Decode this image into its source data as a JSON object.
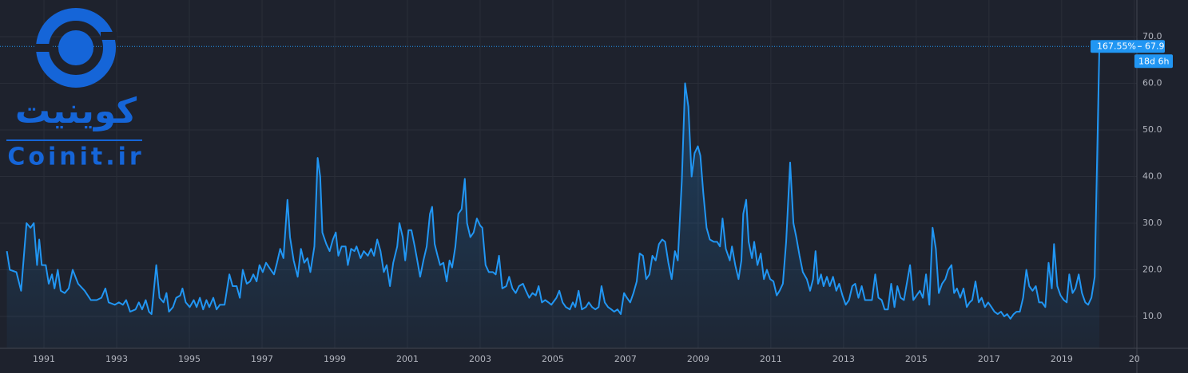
{
  "chart_data": {
    "type": "area",
    "watermark_persian": "کوینیت",
    "watermark_latin": "Coinit.ir",
    "color": "#2196f3",
    "grid": true,
    "xlim": [
      1989.79,
      2021.07
    ],
    "ylim": [
      3.16,
      77.86
    ],
    "xticks": [
      1991,
      1993,
      1995,
      1997,
      1999,
      2001,
      2003,
      2005,
      2007,
      2009,
      2011,
      2013,
      2015,
      2017,
      2019,
      {
        "value": 2021,
        "label": "20"
      }
    ],
    "yticks": [
      {
        "value": 10,
        "label": "10.0"
      },
      {
        "value": 20,
        "label": "20.0"
      },
      {
        "value": 30,
        "label": "30.0"
      },
      {
        "value": 40,
        "label": "40.0"
      },
      {
        "value": 50,
        "label": "50.0"
      },
      {
        "value": 60,
        "label": "60.0"
      },
      {
        "value": 70,
        "label": "70.0"
      }
    ],
    "change_label": "167.55%",
    "countdown_label": "18d 6h",
    "x": [
      1989.98,
      1990.06,
      1990.24,
      1990.37,
      1990.52,
      1990.63,
      1990.72,
      1990.81,
      1990.87,
      1990.94,
      1991.05,
      1991.13,
      1991.22,
      1991.29,
      1991.38,
      1991.46,
      1991.57,
      1991.68,
      1991.79,
      1991.94,
      1992.12,
      1992.29,
      1992.45,
      1992.58,
      1992.69,
      1992.78,
      1992.95,
      1993.06,
      1993.17,
      1993.26,
      1993.37,
      1993.52,
      1993.61,
      1993.7,
      1993.8,
      1993.89,
      1993.96,
      1994.09,
      1994.18,
      1994.29,
      1994.37,
      1994.44,
      1994.55,
      1994.64,
      1994.75,
      1994.81,
      1994.9,
      1995.01,
      1995.12,
      1995.2,
      1995.29,
      1995.38,
      1995.47,
      1995.55,
      1995.66,
      1995.75,
      1995.84,
      1995.97,
      1996.1,
      1996.19,
      1996.3,
      1996.39,
      1996.47,
      1996.58,
      1996.67,
      1996.76,
      1996.85,
      1996.93,
      1997.02,
      1997.11,
      1997.24,
      1997.33,
      1997.41,
      1997.5,
      1997.59,
      1997.7,
      1997.77,
      1997.87,
      1997.98,
      1998.07,
      1998.16,
      1998.25,
      1998.33,
      1998.44,
      1998.53,
      1998.6,
      1998.66,
      1998.77,
      1998.86,
      1998.95,
      1999.03,
      1999.1,
      1999.19,
      1999.3,
      1999.36,
      1999.45,
      1999.54,
      1999.6,
      1999.71,
      1999.8,
      1999.91,
      2000.0,
      2000.08,
      2000.17,
      2000.26,
      2000.35,
      2000.43,
      2000.52,
      2000.61,
      2000.72,
      2000.78,
      2000.87,
      2000.94,
      2001.03,
      2001.11,
      2001.2,
      2001.27,
      2001.35,
      2001.44,
      2001.53,
      2001.62,
      2001.68,
      2001.75,
      2001.83,
      2001.9,
      2001.99,
      2002.08,
      2002.16,
      2002.23,
      2002.32,
      2002.4,
      2002.49,
      2002.58,
      2002.64,
      2002.73,
      2002.82,
      2002.91,
      2003.0,
      2003.06,
      2003.15,
      2003.24,
      2003.35,
      2003.43,
      2003.52,
      2003.61,
      2003.72,
      2003.8,
      2003.89,
      2003.98,
      2004.07,
      2004.18,
      2004.26,
      2004.35,
      2004.44,
      2004.53,
      2004.61,
      2004.7,
      2004.79,
      2004.88,
      2004.96,
      2005.1,
      2005.18,
      2005.27,
      2005.36,
      2005.47,
      2005.55,
      2005.62,
      2005.71,
      2005.8,
      2005.91,
      2005.99,
      2006.08,
      2006.17,
      2006.26,
      2006.34,
      2006.43,
      2006.52,
      2006.61,
      2006.69,
      2006.78,
      2006.87,
      2006.96,
      2007.04,
      2007.13,
      2007.22,
      2007.31,
      2007.39,
      2007.48,
      2007.57,
      2007.66,
      2007.74,
      2007.83,
      2007.92,
      2008.01,
      2008.09,
      2008.18,
      2008.27,
      2008.36,
      2008.44,
      2008.55,
      2008.64,
      2008.73,
      2008.82,
      2008.9,
      2008.99,
      2009.06,
      2009.14,
      2009.23,
      2009.32,
      2009.43,
      2009.52,
      2009.6,
      2009.67,
      2009.76,
      2009.87,
      2009.93,
      2010.02,
      2010.11,
      2010.19,
      2010.24,
      2010.32,
      2010.39,
      2010.48,
      2010.54,
      2010.63,
      2010.72,
      2010.81,
      2010.89,
      2010.98,
      2011.07,
      2011.16,
      2011.24,
      2011.33,
      2011.42,
      2011.53,
      2011.62,
      2011.7,
      2011.79,
      2011.88,
      2011.99,
      2012.08,
      2012.16,
      2012.23,
      2012.3,
      2012.38,
      2012.45,
      2012.54,
      2012.62,
      2012.71,
      2012.8,
      2012.88,
      2012.97,
      2013.06,
      2013.15,
      2013.24,
      2013.32,
      2013.41,
      2013.5,
      2013.59,
      2013.7,
      2013.78,
      2013.87,
      2013.96,
      2014.05,
      2014.13,
      2014.22,
      2014.31,
      2014.4,
      2014.48,
      2014.57,
      2014.66,
      2014.75,
      2014.83,
      2014.92,
      2015.01,
      2015.1,
      2015.18,
      2015.27,
      2015.36,
      2015.45,
      2015.54,
      2015.62,
      2015.71,
      2015.8,
      2015.88,
      2015.97,
      2016.04,
      2016.12,
      2016.21,
      2016.3,
      2016.39,
      2016.47,
      2016.54,
      2016.63,
      2016.72,
      2016.8,
      2016.89,
      2016.98,
      2017.07,
      2017.15,
      2017.24,
      2017.33,
      2017.42,
      2017.5,
      2017.59,
      2017.68,
      2017.76,
      2017.85,
      2017.94,
      2018.03,
      2018.11,
      2018.2,
      2018.29,
      2018.38,
      2018.46,
      2018.55,
      2018.64,
      2018.73,
      2018.79,
      2018.88,
      2018.97,
      2019.06,
      2019.14,
      2019.21,
      2019.3,
      2019.38,
      2019.47,
      2019.56,
      2019.65,
      2019.73,
      2019.82,
      2019.91,
      2020.04
    ],
    "values": [
      24,
      20,
      19.5,
      15.5,
      30,
      29,
      30,
      21,
      26.5,
      21,
      21,
      17,
      19,
      16,
      20,
      15.5,
      15,
      16,
      20,
      17,
      15.5,
      13.5,
      13.5,
      14,
      16,
      13,
      12.5,
      13,
      12.5,
      13.5,
      11,
      11.5,
      13,
      11.5,
      13.5,
      11,
      10.5,
      21,
      14,
      13,
      15,
      11,
      12,
      14,
      14.5,
      16,
      13,
      12,
      13.5,
      12,
      14,
      11.5,
      13.5,
      12,
      14,
      11.5,
      12.5,
      12.5,
      19,
      16.5,
      16.5,
      14,
      20,
      17,
      17.5,
      19,
      17.5,
      21,
      19.5,
      21.5,
      20,
      19,
      21.5,
      24.5,
      22.5,
      35,
      27,
      22,
      18.5,
      24.5,
      21.5,
      22.5,
      19.5,
      25,
      44,
      40,
      28,
      25.5,
      24,
      26.5,
      28,
      23,
      25,
      25,
      21,
      24.5,
      24,
      25,
      22.5,
      24,
      23,
      24.5,
      23,
      26.5,
      24,
      19.5,
      21,
      16.5,
      21.5,
      25,
      30,
      27,
      22,
      28.5,
      28.5,
      25,
      22,
      18.5,
      22,
      25,
      32,
      33.5,
      25.5,
      23,
      21,
      21.5,
      17.5,
      22,
      20.5,
      25,
      32,
      33,
      39.5,
      30,
      27,
      28,
      31,
      29.5,
      29,
      21,
      19.5,
      19.5,
      19,
      23,
      16,
      16.5,
      18.5,
      16,
      15,
      16.5,
      17,
      15.5,
      14,
      15,
      14.5,
      16.5,
      13,
      13.5,
      13,
      12.5,
      14,
      15.5,
      13,
      12,
      11.5,
      13,
      12,
      15.5,
      11.5,
      12,
      13,
      12,
      11.5,
      12,
      16.5,
      13,
      12,
      11.5,
      11,
      11.5,
      10.5,
      15,
      14,
      13,
      15,
      17.5,
      23.5,
      23,
      18,
      19,
      23,
      22,
      25.5,
      26.5,
      26,
      21.5,
      18,
      24,
      22,
      39,
      60,
      55,
      40,
      45,
      46.5,
      44.5,
      36.5,
      29,
      26.5,
      26,
      26,
      25,
      31,
      24.5,
      22,
      25,
      21,
      18,
      22,
      32,
      35,
      26,
      22.5,
      26,
      21,
      23.5,
      18,
      20,
      18,
      17.5,
      14.5,
      15.5,
      17,
      26,
      43,
      30,
      27,
      23,
      19.5,
      18,
      15.5,
      18,
      24,
      17,
      19,
      16.5,
      18.5,
      16.5,
      18.5,
      15.5,
      17,
      14.5,
      12.5,
      13.5,
      16.5,
      17,
      14,
      16.5,
      13.5,
      13.5,
      13.5,
      19,
      14,
      13.5,
      11.5,
      11.5,
      17,
      12,
      16.5,
      14,
      13.5,
      17.5,
      21,
      13.5,
      14.5,
      15.5,
      14,
      19,
      12.5,
      29,
      24.5,
      15,
      17,
      18,
      20,
      21,
      15,
      16,
      14,
      16,
      12,
      13,
      13.5,
      17.5,
      13,
      14,
      12,
      13,
      12,
      11,
      10.5,
      11,
      10,
      10.5,
      9.5,
      10.5,
      11,
      11,
      14,
      20,
      16.5,
      15.5,
      16.5,
      13,
      13,
      12,
      21.5,
      16,
      25.5,
      16.5,
      14.5,
      13.5,
      13,
      19,
      15,
      16,
      19,
      15,
      13,
      12.5,
      14,
      18.5,
      67.9
    ]
  }
}
